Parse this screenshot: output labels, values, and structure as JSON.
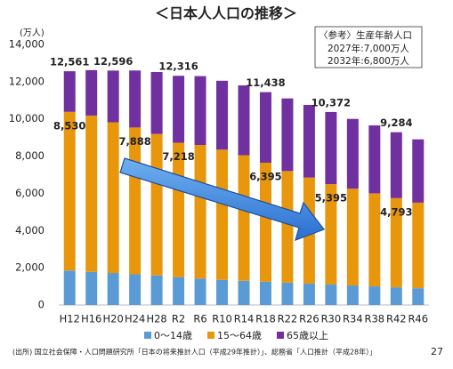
{
  "chart_data": {
    "type": "stacked_bar",
    "title": "＜日本人人口の推移＞",
    "y_label": "(万人)",
    "categories": [
      "H12",
      "H16",
      "H20",
      "H24",
      "H28",
      "R2",
      "R6",
      "R10",
      "R14",
      "R18",
      "R22",
      "R26",
      "R30",
      "R34",
      "R38",
      "R42",
      "R46"
    ],
    "series": [
      {
        "name": "0～14歳",
        "color": "#5b9bd5",
        "values": [
          1850,
          1780,
          1720,
          1650,
          1590,
          1500,
          1420,
          1350,
          1300,
          1250,
          1200,
          1150,
          1100,
          1050,
          1000,
          950,
          900
        ]
      },
      {
        "name": "15～64歳",
        "color": "#e8960c",
        "values": [
          8530,
          8400,
          8100,
          7888,
          7600,
          7218,
          7180,
          7000,
          6750,
          6395,
          6000,
          5700,
          5395,
          5200,
          5000,
          4793,
          4600
        ],
        "value_labels": [
          "8,530",
          null,
          null,
          "7,888",
          null,
          "7,218",
          null,
          null,
          null,
          "6,395",
          null,
          null,
          "5,395",
          null,
          null,
          "4,793",
          null
        ]
      },
      {
        "name": "65歳以上",
        "color": "#7030a0",
        "values": [
          2181,
          2440,
          2776,
          3062,
          3330,
          3598,
          3700,
          3700,
          3750,
          3793,
          3900,
          3900,
          3877,
          3750,
          3650,
          3541,
          3400
        ]
      }
    ],
    "total_labels": [
      {
        "category": "H12",
        "label": "12,561"
      },
      {
        "category": "H20",
        "label": "12,596"
      },
      {
        "category": "R2",
        "label": "12,316"
      },
      {
        "category": "R18",
        "label": "11,438"
      },
      {
        "category": "R30",
        "label": "10,372"
      },
      {
        "category": "R42",
        "label": "9,284"
      }
    ],
    "ylim": [
      0,
      14000
    ],
    "yticks": [
      0,
      {
        "value": 2000,
        "label": "2,000"
      },
      {
        "value": 4000,
        "label": "4,000"
      },
      {
        "value": 6000,
        "label": "6,000"
      },
      {
        "value": 8000,
        "label": "8,000"
      },
      {
        "value": 10000,
        "label": "10,000"
      },
      {
        "value": 12000,
        "label": "12,000"
      },
      {
        "value": 14000,
        "label": "14,000"
      }
    ],
    "grid": false,
    "note": [
      "〈参考〉生産年齢人口",
      "2027年:7,000万人",
      "2032年:6,800万人"
    ],
    "source": "(出所) 国立社会保障・人口問題研究所「日本の将来推計人口（平成29年推計）」、総務省「人口推計（平成28年）」",
    "page_number": "27"
  }
}
